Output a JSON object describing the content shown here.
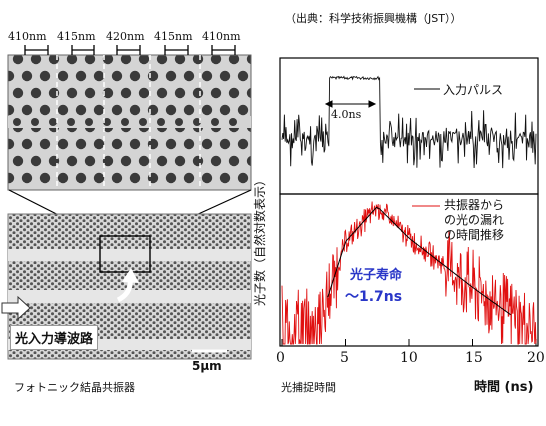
{
  "source_note": "（出典：科学技術振興機構（JST））",
  "crystal": {
    "periods": [
      "410nm",
      "415nm",
      "420nm",
      "415nm",
      "410nm"
    ],
    "waveguide_label": "光入力導波路",
    "scale_bar": "5μm",
    "caption": "フォトニック結晶共振器"
  },
  "chart": {
    "ylabel": "光子数（自然対数表示）",
    "xlabel_prefix": "光捕捉時間",
    "xlabel": "時間 (ns)",
    "x_ticks": [
      "0",
      "5",
      "10",
      "15",
      "20"
    ],
    "legend_top": "入力パルス",
    "legend_bottom": "共振器からの光の漏れの時間推移",
    "legend_bottom_lines": [
      "共振器から",
      "の光の漏れ",
      "の時間推移"
    ],
    "pulse_width": "4.0ns",
    "lifetime_line1": "光子寿命",
    "lifetime_line2": "～1.7ns",
    "colors": {
      "input": "#000000",
      "leak": "#e01010",
      "lifetime_text": "#2a37c8"
    }
  },
  "chart_data": [
    {
      "type": "line",
      "series": [
        {
          "name": "入力パルス",
          "x": [
            0,
            3.6,
            3.8,
            7.6,
            7.8,
            20
          ],
          "y": [
            0,
            0,
            1,
            1,
            0,
            0
          ]
        }
      ],
      "xlim": [
        0,
        20
      ],
      "annotation": "4.0ns"
    },
    {
      "type": "line",
      "series": [
        {
          "name": "共振器からの光の漏れの時間推移",
          "x": [
            3.5,
            5,
            7.5,
            10,
            15,
            20
          ],
          "y": [
            0.5,
            2.2,
            3.2,
            2.3,
            0.9,
            -0.4
          ]
        }
      ],
      "xlim": [
        0,
        20
      ],
      "xlabel": "時間 (ns)",
      "ylabel": "光子数（自然対数表示）",
      "x_ticks": [
        0,
        5,
        10,
        15,
        20
      ],
      "annotation": "光子寿命 ～1.7ns"
    }
  ]
}
